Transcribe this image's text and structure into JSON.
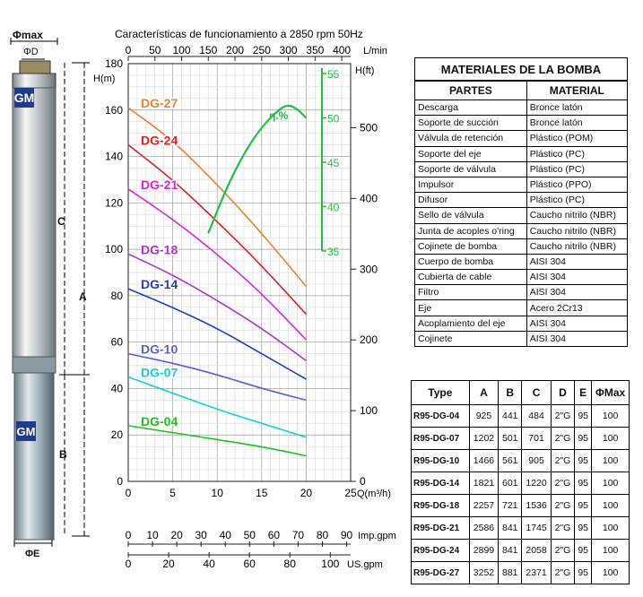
{
  "pump": {
    "label_max": "Φmax",
    "label_d": "ΦD",
    "label_e": "ΦE",
    "label_a": "A",
    "label_b": "B",
    "label_c": "C",
    "brand": "GM"
  },
  "materials": {
    "title": "MATERIALES DE LA BOMBA",
    "headers": [
      "PARTES",
      "MATERIAL"
    ],
    "rows": [
      [
        "Descarga",
        "Bronce latón"
      ],
      [
        "Soporte de succión",
        "Bronce latón"
      ],
      [
        "Válvula de retención",
        "Plástico (POM)"
      ],
      [
        "Soporte del eje",
        "Plástico (PC)"
      ],
      [
        "Soporte de válvula",
        "Plástico (PC)"
      ],
      [
        "Impulsor",
        "Plástico (PPO)"
      ],
      [
        "Difusor",
        "Plástico (PC)"
      ],
      [
        "Sello de válvula",
        "Caucho nitrilo (NBR)"
      ],
      [
        "Junta de acoples o'ring",
        "Caucho nitrilo (NBR)"
      ],
      [
        "Cojinete de bomba",
        "Caucho nitrilo (NBR)"
      ],
      [
        "Cuerpo de bomba",
        "AISI 304"
      ],
      [
        "Cubierta de cable",
        "AISI 304"
      ],
      [
        "Filtro",
        "AISI 304"
      ],
      [
        "Eje",
        "Acero 2Cr13"
      ],
      [
        "Acoplamiento del eje",
        "AISI 304"
      ],
      [
        "Cojinete",
        "AISI 304"
      ]
    ]
  },
  "dimensions": {
    "headers": [
      "Type",
      "A",
      "B",
      "C",
      "D",
      "E",
      "ΦMax"
    ],
    "rows": [
      [
        "R95-DG-04",
        "925",
        "441",
        "484",
        "2\"G",
        "95",
        "100"
      ],
      [
        "R95-DG-07",
        "1202",
        "501",
        "701",
        "2\"G",
        "95",
        "100"
      ],
      [
        "R95-DG-10",
        "1466",
        "561",
        "905",
        "2\"G",
        "95",
        "100"
      ],
      [
        "R95-DG-14",
        "1821",
        "601",
        "1220",
        "2\"G",
        "95",
        "100"
      ],
      [
        "R95-DG-18",
        "2257",
        "721",
        "1536",
        "2\"G",
        "95",
        "100"
      ],
      [
        "R95-DG-21",
        "2586",
        "841",
        "1745",
        "2\"G",
        "95",
        "100"
      ],
      [
        "R95-DG-24",
        "2899",
        "841",
        "2058",
        "2\"G",
        "95",
        "100"
      ],
      [
        "R95-DG-27",
        "3252",
        "881",
        "2371",
        "2\"G",
        "95",
        "100"
      ]
    ]
  },
  "chart_data": {
    "type": "line",
    "title": "Características de funcionamiento a 2850 rpm 50Hz",
    "xlabel": "Q(m³/h)",
    "ylabel_left": "H(m)",
    "ylabel_right": "H(ft)",
    "top_axis_label": "L/min",
    "eff_label": "η.%",
    "imp_label": "Imp.gpm",
    "us_label": "US.gpm",
    "xlim": [
      0,
      25
    ],
    "ylim": [
      0,
      180
    ],
    "x_ticks": [
      "0",
      "5",
      "10",
      "15",
      "20",
      "25"
    ],
    "y_ticks": [
      "0",
      "20",
      "40",
      "60",
      "80",
      "100",
      "120",
      "140",
      "160",
      "180"
    ],
    "lmin_ticks": [
      "0",
      "50",
      "100",
      "150",
      "200",
      "250",
      "300",
      "350",
      "400"
    ],
    "ft_ticks": [
      "0",
      "100",
      "200",
      "300",
      "400",
      "500"
    ],
    "eff_ticks": [
      "35",
      "40",
      "45",
      "50",
      "55"
    ],
    "imp_ticks": [
      "0",
      "10",
      "20",
      "30",
      "40",
      "50",
      "60",
      "70",
      "80",
      "90"
    ],
    "us_ticks": [
      "0",
      "20",
      "40",
      "60",
      "80",
      "100"
    ],
    "series": [
      {
        "name": "DG-27",
        "color": "#f0802a",
        "x": [
          0,
          5,
          10,
          15,
          20
        ],
        "y": [
          161,
          147,
          128,
          107,
          84
        ]
      },
      {
        "name": "DG-24",
        "color": "#e02020",
        "x": [
          0,
          5,
          10,
          15,
          20
        ],
        "y": [
          145,
          130,
          112,
          93,
          72
        ]
      },
      {
        "name": "DG-21",
        "color": "#e020e0",
        "x": [
          0,
          5,
          10,
          15,
          20
        ],
        "y": [
          126,
          113,
          98,
          81,
          61
        ]
      },
      {
        "name": "DG-18",
        "color": "#b030d0",
        "x": [
          0,
          5,
          10,
          15,
          20
        ],
        "y": [
          98,
          89,
          78,
          66,
          52
        ]
      },
      {
        "name": "DG-14",
        "color": "#2040c0",
        "x": [
          0,
          5,
          10,
          15,
          20
        ],
        "y": [
          83,
          75,
          66,
          55,
          44
        ]
      },
      {
        "name": "DG-10",
        "color": "#5a60d0",
        "x": [
          0,
          5,
          10,
          15,
          20
        ],
        "y": [
          55,
          51,
          46,
          40,
          35
        ]
      },
      {
        "name": "DG-07",
        "color": "#10d0e0",
        "x": [
          0,
          5,
          10,
          15,
          20
        ],
        "y": [
          45,
          38,
          31,
          25,
          19
        ]
      },
      {
        "name": "DG-04",
        "color": "#20c020",
        "x": [
          0,
          5,
          10,
          15,
          20
        ],
        "y": [
          24,
          21,
          18,
          15,
          11
        ]
      }
    ],
    "efficiency": {
      "color": "#20c040",
      "x": [
        9,
        11,
        13,
        15,
        17,
        18,
        19,
        20
      ],
      "y": [
        37,
        42,
        46,
        49,
        51,
        51.5,
        51,
        50
      ],
      "ylim": [
        35,
        55
      ]
    }
  }
}
